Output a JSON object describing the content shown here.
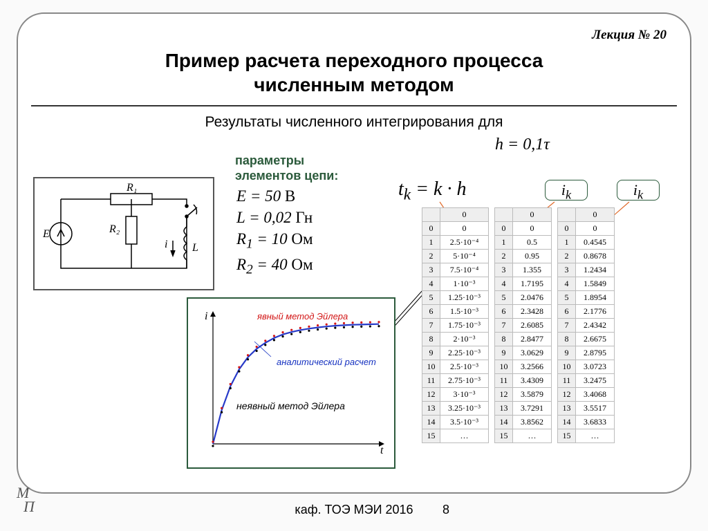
{
  "lecture_no": "Лекция № 20",
  "title_l1": "Пример расчета переходного процесса",
  "title_l2": "численным методом",
  "subtitle_prefix": "Результаты численного интегрирования для",
  "h_expr": "h = 0,1τ",
  "params_label": "параметры\nэлементов цепи:",
  "params": {
    "E": "E = 50 В",
    "L": "L = 0,02 Гн",
    "R1": "R₁ = 10 Ом",
    "R2": "R₂ = 40 Ом"
  },
  "eq_tk": "tₖ = k · h",
  "ik_label": "iₖ",
  "circuit": {
    "E": "E",
    "R1": "R₁",
    "R2": "R₂",
    "L": "L",
    "i": "i"
  },
  "chart": {
    "label_explicit": "явный метод Эйлера",
    "label_analytic": "аналитический расчет",
    "label_implicit": "неявный метод Эйлера",
    "xlabel": "t",
    "ylabel": "i",
    "color_explicit": "#d21515",
    "color_analytic": "#1531c0",
    "color_implicit": "#000000",
    "curve_color": "#273ac9",
    "marker_color_a": "#d21515",
    "marker_color_b": "#000000",
    "background": "#ffffff",
    "xlim": [
      0,
      4
    ],
    "ylim": [
      0,
      5
    ],
    "series": [
      0,
      1.4,
      2.4,
      3.1,
      3.6,
      3.95,
      4.2,
      4.4,
      4.55,
      4.65,
      4.73,
      4.79,
      4.84,
      4.88,
      4.91,
      4.93,
      4.95,
      4.96,
      4.97,
      4.98
    ]
  },
  "table1": {
    "header": "0",
    "rows": [
      [
        "0",
        "0"
      ],
      [
        "1",
        "2.5·10⁻⁴"
      ],
      [
        "2",
        "5·10⁻⁴"
      ],
      [
        "3",
        "7.5·10⁻⁴"
      ],
      [
        "4",
        "1·10⁻³"
      ],
      [
        "5",
        "1.25·10⁻³"
      ],
      [
        "6",
        "1.5·10⁻³"
      ],
      [
        "7",
        "1.75·10⁻³"
      ],
      [
        "8",
        "2·10⁻³"
      ],
      [
        "9",
        "2.25·10⁻³"
      ],
      [
        "10",
        "2.5·10⁻³"
      ],
      [
        "11",
        "2.75·10⁻³"
      ],
      [
        "12",
        "3·10⁻³"
      ],
      [
        "13",
        "3.25·10⁻³"
      ],
      [
        "14",
        "3.5·10⁻³"
      ],
      [
        "15",
        "…"
      ]
    ]
  },
  "table2": {
    "header": "0",
    "rows": [
      [
        "0",
        "0"
      ],
      [
        "1",
        "0.5"
      ],
      [
        "2",
        "0.95"
      ],
      [
        "3",
        "1.355"
      ],
      [
        "4",
        "1.7195"
      ],
      [
        "5",
        "2.0476"
      ],
      [
        "6",
        "2.3428"
      ],
      [
        "7",
        "2.6085"
      ],
      [
        "8",
        "2.8477"
      ],
      [
        "9",
        "3.0629"
      ],
      [
        "10",
        "3.2566"
      ],
      [
        "11",
        "3.4309"
      ],
      [
        "12",
        "3.5879"
      ],
      [
        "13",
        "3.7291"
      ],
      [
        "14",
        "3.8562"
      ],
      [
        "15",
        "…"
      ]
    ]
  },
  "table3": {
    "header": "0",
    "rows": [
      [
        "0",
        "0"
      ],
      [
        "1",
        "0.4545"
      ],
      [
        "2",
        "0.8678"
      ],
      [
        "3",
        "1.2434"
      ],
      [
        "4",
        "1.5849"
      ],
      [
        "5",
        "1.8954"
      ],
      [
        "6",
        "2.1776"
      ],
      [
        "7",
        "2.4342"
      ],
      [
        "8",
        "2.6675"
      ],
      [
        "9",
        "2.8795"
      ],
      [
        "10",
        "3.0723"
      ],
      [
        "11",
        "3.2475"
      ],
      [
        "12",
        "3.4068"
      ],
      [
        "13",
        "3.5517"
      ],
      [
        "14",
        "3.6833"
      ],
      [
        "15",
        "…"
      ]
    ]
  },
  "footer_logo": "МП",
  "footer_center": "каф. ТОЭ МЭИ 2016",
  "footer_page": "8",
  "colors": {
    "frame_border": "#888888",
    "accent_green": "#2b5a3b",
    "pointer": "#e06a2a"
  }
}
